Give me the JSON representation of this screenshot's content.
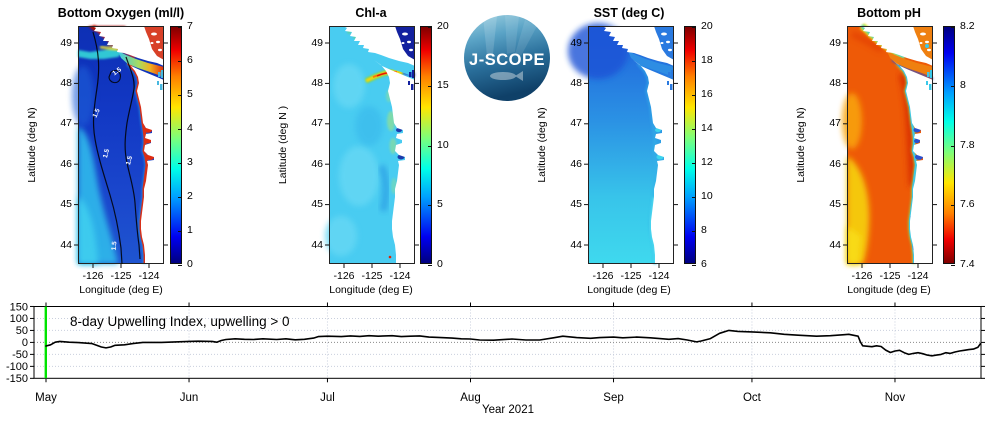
{
  "page": {
    "background": "#ffffff"
  },
  "logo": {
    "text": "J-SCOPE"
  },
  "panels": [
    {
      "id": "bottom-oxygen",
      "title": "Bottom Oxygen (ml/l)",
      "ylabel": "Latitude (deg N)",
      "xlabel": "Longitude (deg E)",
      "lat_ticks": [
        49,
        48,
        47,
        46,
        45,
        44
      ],
      "lon_ticks": [
        "-126",
        "-125",
        "-124"
      ],
      "contour_label": "1.5",
      "colorbar": {
        "min": 0,
        "max": 7,
        "tick_labels": [
          "0",
          "1",
          "2",
          "3",
          "4",
          "5",
          "6",
          "7"
        ],
        "tick_values": [
          0,
          1,
          2,
          3,
          4,
          5,
          6,
          7
        ],
        "reversed": false
      },
      "map_colors": {
        "deep": "#0d2fb4",
        "mid": "#1a46cc",
        "shelf_cyan": "#2db4ea",
        "bright_cyan": "#3fd0f0",
        "coast_red": "#e02c10",
        "dark_red": "#a50d00",
        "band_cyan": "#35d8d8",
        "band_yellow": "#eedc30",
        "band_orange": "#f09020",
        "strait_green": "#a8dc60",
        "corner": "#d84028",
        "contour": "#000000",
        "land": "#ffffff"
      }
    },
    {
      "id": "chl-a",
      "title": "Chl-a",
      "ylabel": "Latitude (deg N )",
      "xlabel": "Longitude (deg E)",
      "lat_ticks": [
        49,
        48,
        47,
        46,
        45,
        44
      ],
      "lon_ticks": [
        "-126",
        "-125",
        "-124"
      ],
      "colorbar": {
        "min": 0,
        "max": 20,
        "tick_labels": [
          "0",
          "5",
          "10",
          "15",
          "20"
        ],
        "tick_values": [
          0,
          5,
          10,
          15,
          20
        ],
        "reversed": false
      },
      "map_colors": {
        "ocean": "#49ccf1",
        "light": "#66d8f4",
        "deep_band": "#2b9fe4",
        "green": "#8ade9c",
        "plume_green": "#66d46a",
        "plume_yellow": "#ffd900",
        "plume_orange": "#ff7800",
        "plume_red": "#e81800",
        "navy": "#13219f",
        "red_dot": "#e02000",
        "land": "#ffffff"
      }
    },
    {
      "id": "sst",
      "title": "SST (deg C)",
      "ylabel": "Latitude (deg N)",
      "xlabel": "Longitude (deg E)",
      "lat_ticks": [
        49,
        48,
        47,
        46,
        45,
        44
      ],
      "lon_ticks": [
        "-126",
        "-125",
        "-124"
      ],
      "colorbar": {
        "min": 6,
        "max": 20,
        "tick_labels": [
          "6",
          "8",
          "10",
          "12",
          "14",
          "16",
          "18",
          "20"
        ],
        "tick_values": [
          6,
          8,
          10,
          12,
          14,
          16,
          18,
          20
        ],
        "reversed": false
      },
      "map_colors": {
        "north": "#1f60db",
        "nw_dark": "#1b52d6",
        "mid": "#2b92e4",
        "south": "#3fd9ee",
        "fringe": "#52e0f1",
        "strait": "#2e8de3",
        "corner": "#2a7ae0",
        "land": "#ffffff"
      }
    },
    {
      "id": "bottom-ph",
      "title": "Bottom pH",
      "ylabel": "Latitude (deg N)",
      "xlabel": "Longitude (deg E)",
      "lat_ticks": [
        49,
        48,
        47,
        46,
        45,
        44
      ],
      "lon_ticks": [
        "-126",
        "-125",
        "-124"
      ],
      "colorbar": {
        "min": 7.4,
        "max": 8.2,
        "tick_labels": [
          "7.4",
          "7.6",
          "7.8",
          "8",
          "8.2"
        ],
        "tick_values": [
          7.4,
          7.6,
          7.8,
          8,
          8.2
        ],
        "reversed": true
      },
      "map_colors": {
        "orange": "#ee5a07",
        "yellow": "#f6cd11",
        "yellow2": "#f8da16",
        "left_amber": "#f9a60a",
        "dark_red": "#d72a02",
        "coast_cyan": "#3bc9ea",
        "coast_blue": "#2b50cf",
        "green": "#8ce059",
        "strait_orange": "#ef8010",
        "land": "#ffffff"
      }
    }
  ],
  "chart_data": {
    "type": "line",
    "annotation": "8-day Upwelling Index, upwelling > 0",
    "xlabel": "Year 2021",
    "months": [
      {
        "label": "May",
        "day": 0
      },
      {
        "label": "Jun",
        "day": 31
      },
      {
        "label": "Jul",
        "day": 61
      },
      {
        "label": "Aug",
        "day": 92
      },
      {
        "label": "Sep",
        "day": 123
      },
      {
        "label": "Oct",
        "day": 153
      },
      {
        "label": "Nov",
        "day": 184
      }
    ],
    "ylim": [
      -150,
      150
    ],
    "yticks": [
      150,
      100,
      50,
      0,
      -50,
      -100,
      -150
    ],
    "grid": true,
    "line_color": "#000000",
    "marker_color": "#00e400",
    "zero_line": true,
    "series": [
      {
        "name": "upwelling_index",
        "points": [
          [
            0,
            -15
          ],
          [
            1,
            -10
          ],
          [
            2,
            1
          ],
          [
            3,
            4
          ],
          [
            5,
            1
          ],
          [
            7,
            -1
          ],
          [
            10,
            -5
          ],
          [
            12,
            -19
          ],
          [
            13,
            -23
          ],
          [
            14,
            -19
          ],
          [
            15,
            -12
          ],
          [
            17,
            -10
          ],
          [
            19,
            -4
          ],
          [
            21,
            0
          ],
          [
            25,
            0
          ],
          [
            28,
            2
          ],
          [
            31,
            4
          ],
          [
            33,
            5
          ],
          [
            36,
            4
          ],
          [
            37,
            1
          ],
          [
            38,
            8
          ],
          [
            39,
            12
          ],
          [
            41,
            15
          ],
          [
            43,
            13
          ],
          [
            45,
            12
          ],
          [
            47,
            15
          ],
          [
            50,
            12
          ],
          [
            52,
            15
          ],
          [
            54,
            11
          ],
          [
            56,
            13
          ],
          [
            58,
            18
          ],
          [
            59,
            24
          ],
          [
            61,
            26
          ],
          [
            64,
            24
          ],
          [
            66,
            27
          ],
          [
            68,
            25
          ],
          [
            70,
            28
          ],
          [
            72,
            26
          ],
          [
            75,
            28
          ],
          [
            77,
            24
          ],
          [
            79,
            26
          ],
          [
            81,
            27
          ],
          [
            83,
            22
          ],
          [
            85,
            21
          ],
          [
            88,
            18
          ],
          [
            90,
            15
          ],
          [
            92,
            14
          ],
          [
            94,
            10
          ],
          [
            97,
            9
          ],
          [
            101,
            14
          ],
          [
            104,
            10
          ],
          [
            107,
            10
          ],
          [
            110,
            19
          ],
          [
            112,
            26
          ],
          [
            115,
            20
          ],
          [
            118,
            17
          ],
          [
            120,
            20
          ],
          [
            123,
            22
          ],
          [
            125,
            19
          ],
          [
            128,
            22
          ],
          [
            131,
            19
          ],
          [
            133,
            16
          ],
          [
            135,
            13
          ],
          [
            137,
            16
          ],
          [
            139,
            10
          ],
          [
            141,
            2
          ],
          [
            142,
            6
          ],
          [
            144,
            16
          ],
          [
            146,
            38
          ],
          [
            148,
            50
          ],
          [
            150,
            46
          ],
          [
            153,
            44
          ],
          [
            157,
            40
          ],
          [
            160,
            34
          ],
          [
            163,
            30
          ],
          [
            167,
            26
          ],
          [
            170,
            28
          ],
          [
            173,
            32
          ],
          [
            174,
            34
          ],
          [
            176,
            26
          ],
          [
            176.5,
            2
          ],
          [
            177,
            -14
          ],
          [
            179,
            -18
          ],
          [
            180,
            -14
          ],
          [
            181,
            -17
          ],
          [
            182,
            -32
          ],
          [
            183,
            -42
          ],
          [
            184,
            -36
          ],
          [
            185,
            -33
          ],
          [
            186,
            -43
          ],
          [
            187,
            -50
          ],
          [
            188,
            -46
          ],
          [
            189,
            -43
          ],
          [
            190,
            -47
          ],
          [
            191,
            -53
          ],
          [
            192,
            -56
          ],
          [
            193,
            -53
          ],
          [
            194,
            -50
          ],
          [
            195,
            -43
          ],
          [
            196,
            -46
          ],
          [
            197,
            -40
          ],
          [
            198,
            -36
          ],
          [
            199,
            -33
          ],
          [
            200,
            -30
          ],
          [
            201,
            -28
          ],
          [
            202,
            -20
          ],
          [
            202.5,
            -6
          ]
        ]
      }
    ]
  }
}
